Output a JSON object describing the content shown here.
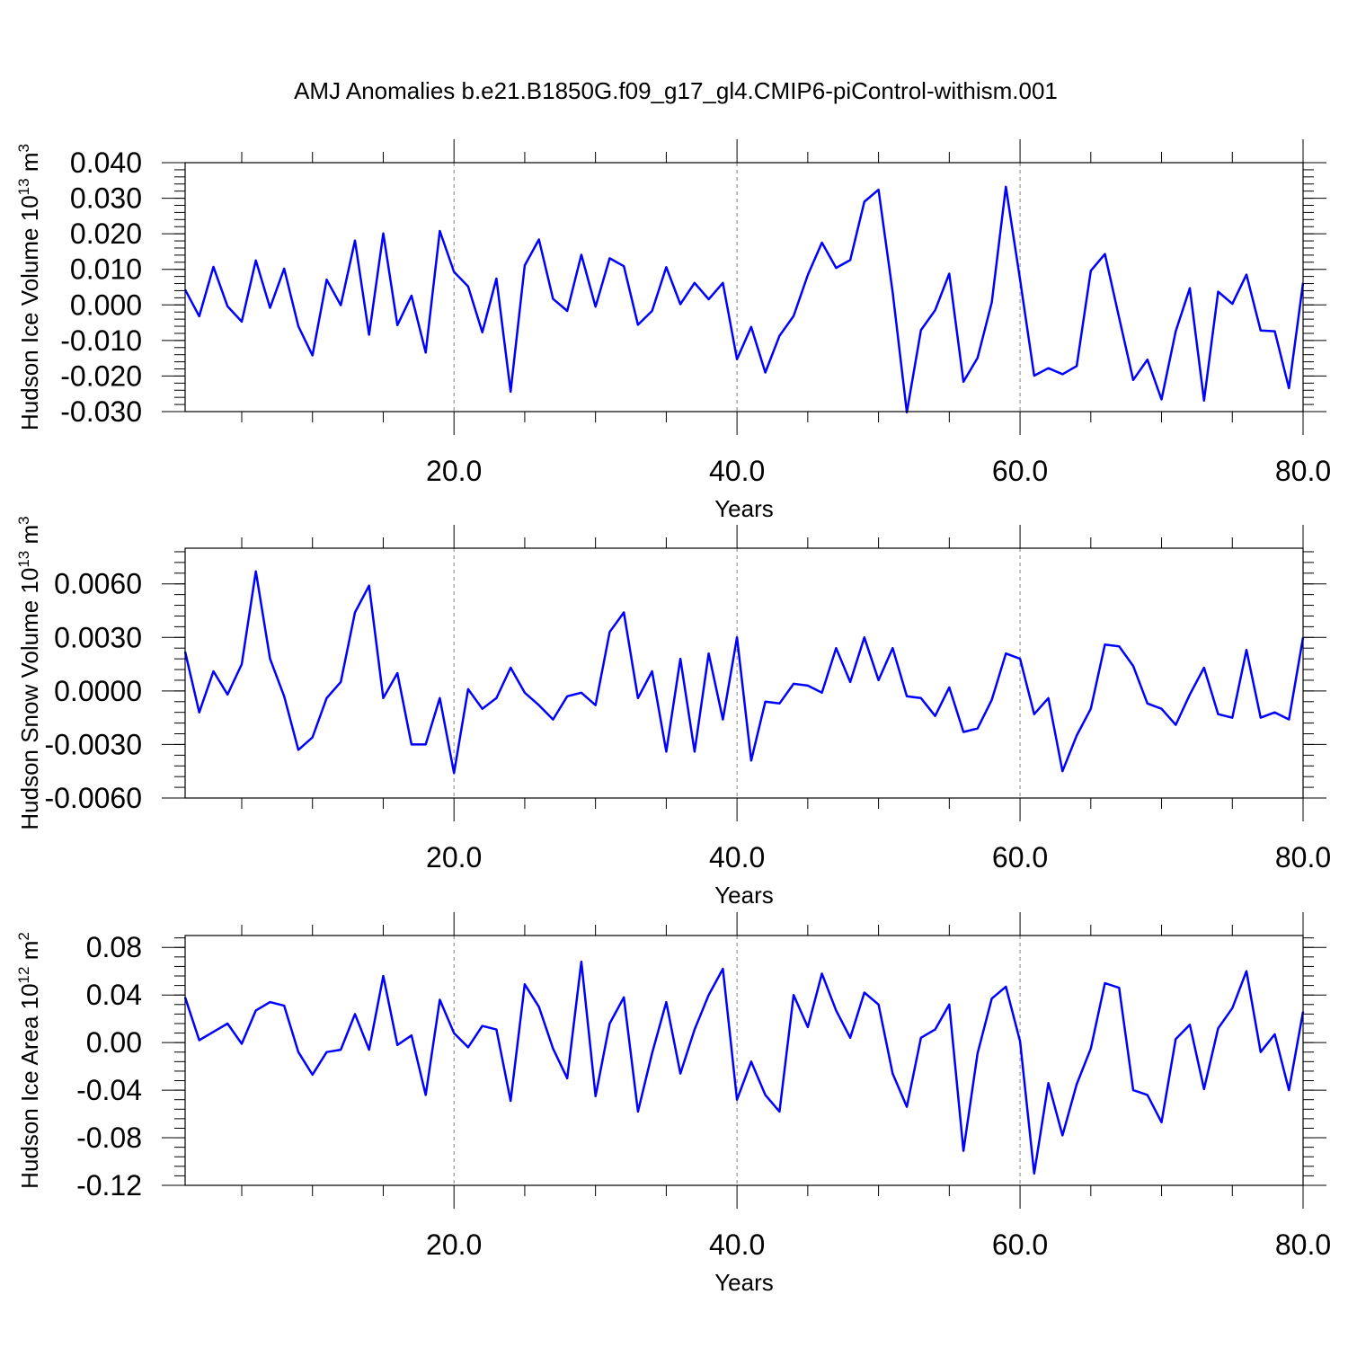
{
  "title": "AMJ Anomalies b.e21.B1850G.f09_g17_gl4.CMIP6-piControl-withism.001",
  "colors": {
    "line": "#0000ff",
    "axis": "#000000",
    "grid": "#808080"
  },
  "chart_data": [
    {
      "type": "line",
      "ylabel_main": "Hudson Ice Volume 10",
      "ylabel_exp": "13",
      "ylabel_unit": " m",
      "ylabel_unit_exp": "3",
      "xlabel": "Years",
      "xlim": [
        1,
        80
      ],
      "ylim": [
        -0.03,
        0.04
      ],
      "xticks": [
        20,
        40,
        60,
        80
      ],
      "xtick_labels": [
        "20.0",
        "40.0",
        "60.0",
        "80.0"
      ],
      "yticks": [
        0.04,
        0.03,
        0.02,
        0.01,
        0.0,
        -0.01,
        -0.02,
        -0.03
      ],
      "ytick_labels": [
        "0.040",
        "0.030",
        "0.020",
        "0.010",
        "0.000",
        "-0.010",
        "-0.020",
        "-0.030"
      ],
      "grid_x": [
        20,
        40,
        60
      ],
      "x": [
        1,
        2,
        3,
        4,
        5,
        6,
        7,
        8,
        9,
        10,
        11,
        12,
        13,
        14,
        15,
        16,
        17,
        18,
        19,
        20,
        21,
        22,
        23,
        24,
        25,
        26,
        27,
        28,
        29,
        30,
        31,
        32,
        33,
        34,
        35,
        36,
        37,
        38,
        39,
        40,
        41,
        42,
        43,
        44,
        45,
        46,
        47,
        48,
        49,
        50,
        51,
        52,
        53,
        54,
        55,
        56,
        57,
        58,
        59,
        60,
        61,
        62,
        63,
        64,
        65,
        66,
        67,
        68,
        69,
        70,
        71,
        72,
        73,
        74,
        75,
        76,
        77,
        78,
        79,
        80
      ],
      "values": [
        0.0043,
        -0.0032,
        0.0107,
        -0.0004,
        -0.0047,
        0.0125,
        -0.0008,
        0.0102,
        -0.006,
        -0.0142,
        0.0071,
        -0.0001,
        0.0181,
        -0.0084,
        0.0201,
        -0.0057,
        0.0026,
        -0.0134,
        0.0208,
        0.0093,
        0.0052,
        -0.0077,
        0.0074,
        -0.0244,
        0.0111,
        0.0184,
        0.0017,
        -0.0017,
        0.0141,
        -0.0005,
        0.0131,
        0.0109,
        -0.0056,
        -0.0017,
        0.0106,
        0.0002,
        0.0062,
        0.0016,
        0.0062,
        -0.0153,
        -0.0062,
        -0.019,
        -0.0087,
        -0.0031,
        0.0084,
        0.0175,
        0.0104,
        0.0126,
        0.029,
        0.0324,
        0.0036,
        -0.0302,
        -0.0071,
        -0.0015,
        0.0088,
        -0.0216,
        -0.0149,
        0.0007,
        0.0332,
        0.0071,
        -0.0199,
        -0.0178,
        -0.0195,
        -0.0172,
        0.0096,
        0.0143,
        -0.0036,
        -0.0211,
        -0.0154,
        -0.0266,
        -0.0074,
        0.0047,
        -0.0269,
        0.0037,
        0.0003,
        0.0085,
        -0.0072,
        -0.0074,
        -0.0234,
        0.0062
      ]
    },
    {
      "type": "line",
      "ylabel_main": "Hudson Snow Volume 10",
      "ylabel_exp": "13",
      "ylabel_unit": " m",
      "ylabel_unit_exp": "3",
      "xlabel": "Years",
      "xlim": [
        1,
        80
      ],
      "ylim": [
        -0.006,
        0.008
      ],
      "xticks": [
        20,
        40,
        60,
        80
      ],
      "xtick_labels": [
        "20.0",
        "40.0",
        "60.0",
        "80.0"
      ],
      "yticks": [
        0.006,
        0.003,
        0.0,
        -0.003,
        -0.006
      ],
      "ytick_labels": [
        "0.0060",
        "0.0030",
        "0.0000",
        "-0.0030",
        "-0.0060"
      ],
      "grid_x": [
        20,
        40,
        60
      ],
      "x": [
        1,
        2,
        3,
        4,
        5,
        6,
        7,
        8,
        9,
        10,
        11,
        12,
        13,
        14,
        15,
        16,
        17,
        18,
        19,
        20,
        21,
        22,
        23,
        24,
        25,
        26,
        27,
        28,
        29,
        30,
        31,
        32,
        33,
        34,
        35,
        36,
        37,
        38,
        39,
        40,
        41,
        42,
        43,
        44,
        45,
        46,
        47,
        48,
        49,
        50,
        51,
        52,
        53,
        54,
        55,
        56,
        57,
        58,
        59,
        60,
        61,
        62,
        63,
        64,
        65,
        66,
        67,
        68,
        69,
        70,
        71,
        72,
        73,
        74,
        75,
        76,
        77,
        78,
        79,
        80
      ],
      "values": [
        0.0022,
        -0.0012,
        0.0011,
        -0.0002,
        0.0015,
        0.0067,
        0.0018,
        -0.0003,
        -0.0033,
        -0.0026,
        -0.0004,
        0.0005,
        0.0044,
        0.0059,
        -0.0004,
        0.001,
        -0.003,
        -0.003,
        -0.0004,
        -0.0046,
        0.0001,
        -0.001,
        -0.0004,
        0.0013,
        -0.0001,
        -0.0008,
        -0.0016,
        -0.0003,
        -0.0001,
        -0.0008,
        0.0033,
        0.0044,
        -0.0004,
        0.0011,
        -0.0034,
        0.0018,
        -0.0034,
        0.0021,
        -0.0016,
        0.003,
        -0.0039,
        -0.0006,
        -0.0007,
        0.0004,
        0.0003,
        -0.0001,
        0.0024,
        0.0005,
        0.003,
        0.0006,
        0.0024,
        -0.0003,
        -0.0004,
        -0.0014,
        0.0002,
        -0.0023,
        -0.0021,
        -0.0005,
        0.0021,
        0.0018,
        -0.0013,
        -0.0004,
        -0.0045,
        -0.0025,
        -0.001,
        0.0026,
        0.0025,
        0.0014,
        -0.0007,
        -0.001,
        -0.0019,
        -0.0002,
        0.0013,
        -0.0013,
        -0.0015,
        0.0023,
        -0.0015,
        -0.0012,
        -0.0016,
        0.003
      ]
    },
    {
      "type": "line",
      "ylabel_main": "Hudson Ice Area 10",
      "ylabel_exp": "12",
      "ylabel_unit": " m",
      "ylabel_unit_exp": "2",
      "xlabel": "Years",
      "xlim": [
        1,
        80
      ],
      "ylim": [
        -0.12,
        0.09
      ],
      "xticks": [
        20,
        40,
        60,
        80
      ],
      "xtick_labels": [
        "20.0",
        "40.0",
        "60.0",
        "80.0"
      ],
      "yticks": [
        0.08,
        0.04,
        0.0,
        -0.04,
        -0.08,
        -0.12
      ],
      "ytick_labels": [
        "0.08",
        "0.04",
        "0.00",
        "-0.04",
        "-0.08",
        "-0.12"
      ],
      "grid_x": [
        20,
        40,
        60
      ],
      "x": [
        1,
        2,
        3,
        4,
        5,
        6,
        7,
        8,
        9,
        10,
        11,
        12,
        13,
        14,
        15,
        16,
        17,
        18,
        19,
        20,
        21,
        22,
        23,
        24,
        25,
        26,
        27,
        28,
        29,
        30,
        31,
        32,
        33,
        34,
        35,
        36,
        37,
        38,
        39,
        40,
        41,
        42,
        43,
        44,
        45,
        46,
        47,
        48,
        49,
        50,
        51,
        52,
        53,
        54,
        55,
        56,
        57,
        58,
        59,
        60,
        61,
        62,
        63,
        64,
        65,
        66,
        67,
        68,
        69,
        70,
        71,
        72,
        73,
        74,
        75,
        76,
        77,
        78,
        79,
        80
      ],
      "values": [
        0.038,
        0.002,
        0.009,
        0.016,
        -0.001,
        0.027,
        0.034,
        0.031,
        -0.008,
        -0.027,
        -0.008,
        -0.006,
        0.024,
        -0.006,
        0.056,
        -0.002,
        0.006,
        -0.044,
        0.036,
        0.008,
        -0.004,
        0.014,
        0.011,
        -0.049,
        0.049,
        0.03,
        -0.005,
        -0.03,
        0.068,
        -0.045,
        0.016,
        0.038,
        -0.058,
        -0.009,
        0.034,
        -0.026,
        0.011,
        0.04,
        0.062,
        -0.048,
        -0.016,
        -0.044,
        -0.058,
        0.04,
        0.013,
        0.058,
        0.027,
        0.004,
        0.042,
        0.032,
        -0.026,
        -0.054,
        0.004,
        0.011,
        0.032,
        -0.091,
        -0.009,
        0.037,
        0.047,
        0.001,
        -0.11,
        -0.034,
        -0.078,
        -0.035,
        -0.005,
        0.05,
        0.046,
        -0.04,
        -0.044,
        -0.067,
        0.003,
        0.015,
        -0.039,
        0.012,
        0.029,
        0.06,
        -0.008,
        0.007,
        -0.04,
        0.026
      ]
    }
  ]
}
